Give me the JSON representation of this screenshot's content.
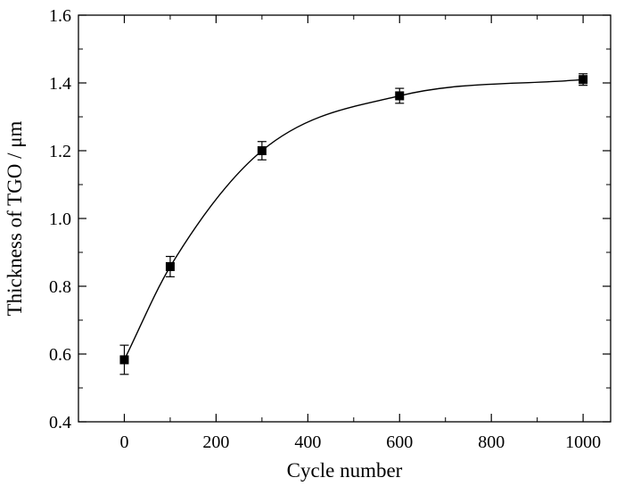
{
  "chart_data": {
    "type": "scatter",
    "xlabel": "Cycle number",
    "ylabel": "Thickness of TGO / μm",
    "xlim": [
      -100,
      1060
    ],
    "ylim": [
      0.4,
      1.6
    ],
    "x_ticks": [
      0,
      200,
      400,
      600,
      800,
      1000
    ],
    "y_ticks": [
      0.4,
      0.6,
      0.8,
      1.0,
      1.2,
      1.4,
      1.6
    ],
    "x_tick_labels": [
      "0",
      "200",
      "400",
      "600",
      "800",
      "1000"
    ],
    "y_tick_labels": [
      "0.4",
      "0.6",
      "0.8",
      "1.0",
      "1.2",
      "1.4",
      "1.6"
    ],
    "grid": false,
    "series": [
      {
        "marker": "square",
        "color": "#000000",
        "fit_line": true,
        "points": [
          {
            "x": 0,
            "y": 0.583,
            "err": 0.043
          },
          {
            "x": 100,
            "y": 0.858,
            "err": 0.03
          },
          {
            "x": 300,
            "y": 1.2,
            "err": 0.027
          },
          {
            "x": 600,
            "y": 1.362,
            "err": 0.022
          },
          {
            "x": 1000,
            "y": 1.41,
            "err": 0.017
          }
        ]
      }
    ]
  }
}
